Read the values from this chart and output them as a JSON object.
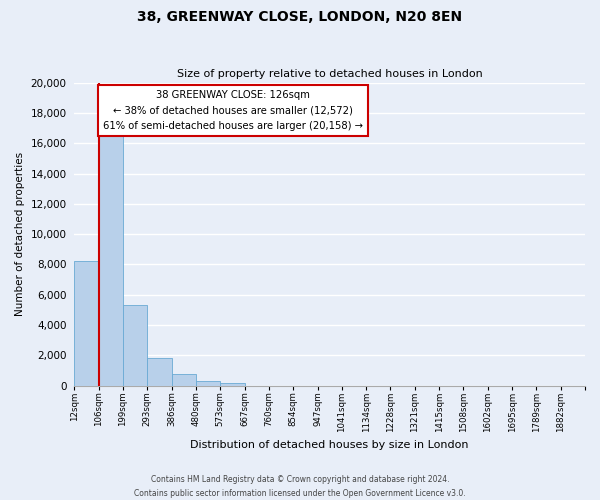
{
  "title": "38, GREENWAY CLOSE, LONDON, N20 8EN",
  "subtitle": "Size of property relative to detached houses in London",
  "xlabel": "Distribution of detached houses by size in London",
  "ylabel": "Number of detached properties",
  "bin_labels": [
    "12sqm",
    "106sqm",
    "199sqm",
    "293sqm",
    "386sqm",
    "480sqm",
    "573sqm",
    "667sqm",
    "760sqm",
    "854sqm",
    "947sqm",
    "1041sqm",
    "1134sqm",
    "1228sqm",
    "1321sqm",
    "1415sqm",
    "1508sqm",
    "1602sqm",
    "1695sqm",
    "1789sqm",
    "1882sqm"
  ],
  "bar_values": [
    8200,
    16600,
    5300,
    1800,
    750,
    300,
    200,
    0,
    0,
    0,
    0,
    0,
    0,
    0,
    0,
    0,
    0,
    0,
    0,
    0,
    0
  ],
  "bar_color": "#b8d0ea",
  "bar_edge_color": "#6aaad4",
  "property_line_x": 1.0,
  "property_line_color": "#cc0000",
  "annotation_title": "38 GREENWAY CLOSE: 126sqm",
  "annotation_line1": "← 38% of detached houses are smaller (12,572)",
  "annotation_line2": "61% of semi-detached houses are larger (20,158) →",
  "annotation_box_color": "#ffffff",
  "annotation_box_edge": "#cc0000",
  "ylim": [
    0,
    20000
  ],
  "yticks": [
    0,
    2000,
    4000,
    6000,
    8000,
    10000,
    12000,
    14000,
    16000,
    18000,
    20000
  ],
  "footer_line1": "Contains HM Land Registry data © Crown copyright and database right 2024.",
  "footer_line2": "Contains public sector information licensed under the Open Government Licence v3.0.",
  "bg_color": "#e8eef8",
  "plot_bg_color": "#e8eef8",
  "grid_color": "#ffffff",
  "title_fontsize": 10,
  "subtitle_fontsize": 8
}
